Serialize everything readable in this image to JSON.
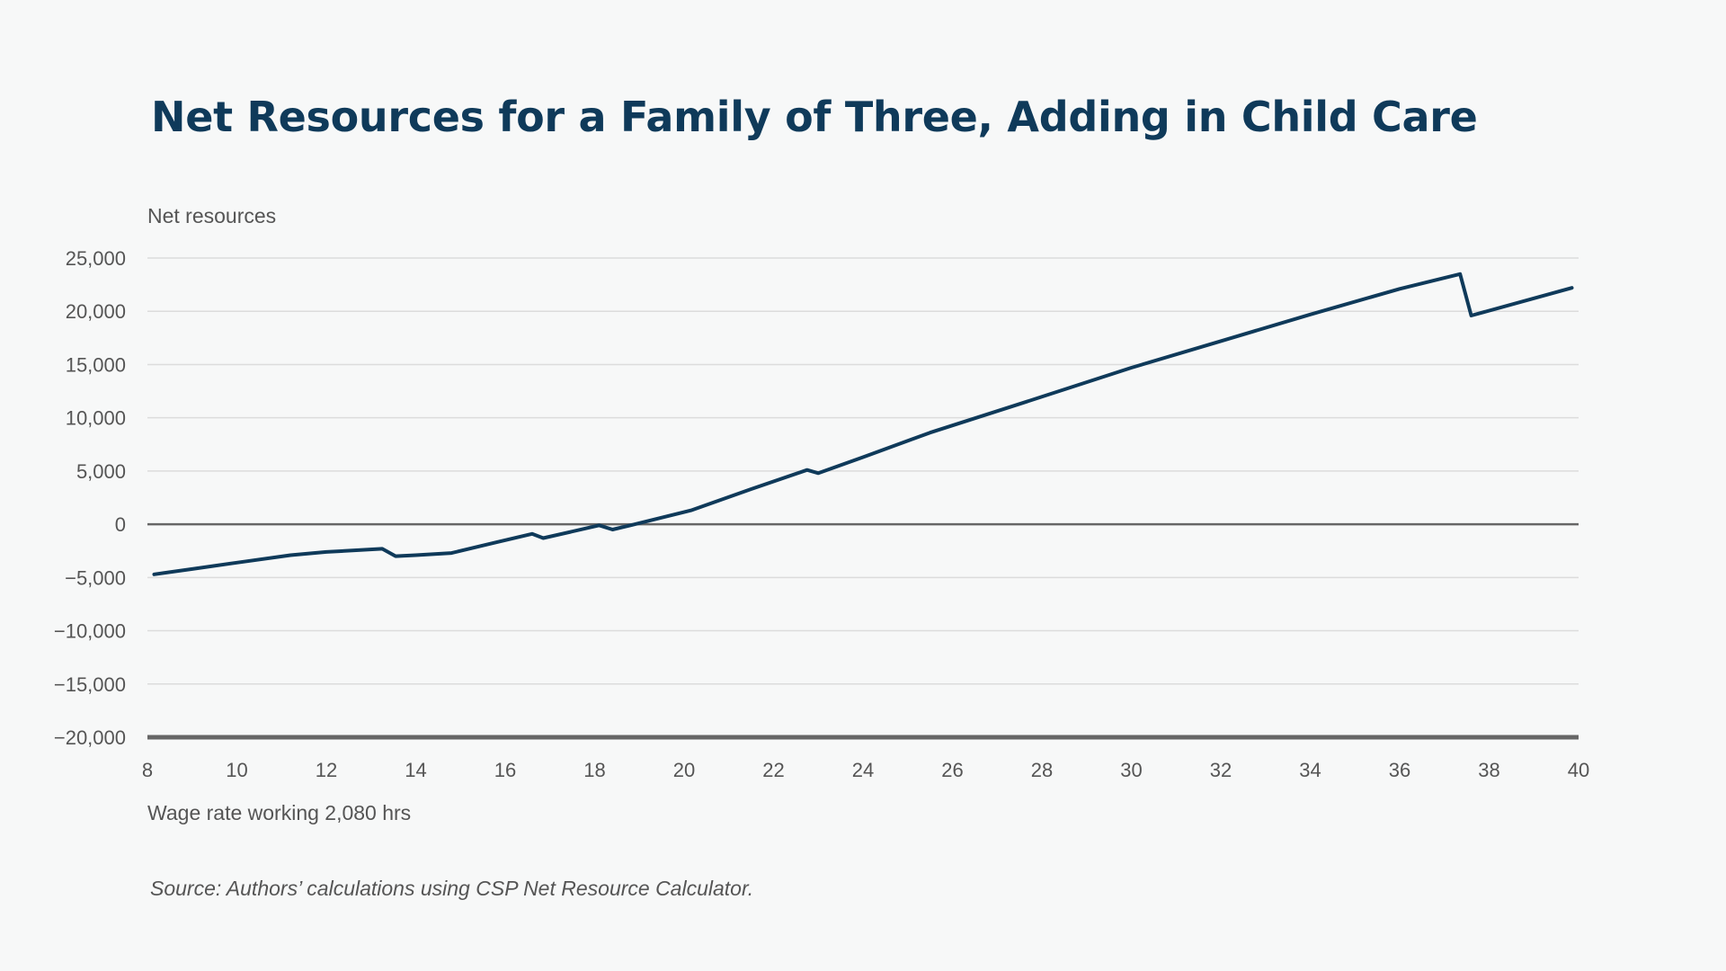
{
  "colors": {
    "background": "#f7f8f8",
    "title": "#0f3a5a",
    "line": "#0f3a5a",
    "grid": "#dcdcdc",
    "zero_line": "#666666",
    "baseline": "#666666",
    "text": "#555555"
  },
  "chart_data": {
    "type": "line",
    "title": "Net Resources for a Family of Three, Adding in Child Care",
    "ylabel": "Net resources",
    "xlabel": "Wage rate working 2,080 hrs",
    "source": "Source: Authors’ calculations using CSP Net Resource Calculator.",
    "xlim": [
      8,
      40
    ],
    "ylim": [
      -20000,
      25000
    ],
    "xticks": [
      8,
      10,
      12,
      14,
      16,
      18,
      20,
      22,
      24,
      26,
      28,
      30,
      32,
      34,
      36,
      38,
      40
    ],
    "yticks": [
      25000,
      20000,
      15000,
      10000,
      5000,
      0,
      -5000,
      -10000,
      -15000,
      -20000
    ],
    "ytick_labels": [
      "25,000",
      "20,000",
      "15,000",
      "10,000",
      "5,000",
      "0",
      "−5,000",
      "−10,000",
      "−15,000",
      "−20,000"
    ],
    "grid": true,
    "legend": "none",
    "series": [
      {
        "x": [
          8.15,
          9,
          10,
          11.2,
          12,
          13.25,
          13.55,
          14,
          14.8,
          15.8,
          16.6,
          16.85,
          18.1,
          18.4,
          18.8,
          20.15,
          21.5,
          22.75,
          23,
          24,
          25.5,
          27.5,
          30,
          32,
          34,
          36,
          37.35,
          37.6,
          39.85
        ],
        "y": [
          -4700,
          -4200,
          -3600,
          -2900,
          -2600,
          -2300,
          -3000,
          -2900,
          -2700,
          -1700,
          -900,
          -1300,
          -100,
          -500,
          -100,
          1300,
          3300,
          5100,
          4800,
          6300,
          8600,
          11300,
          14700,
          17200,
          19700,
          22100,
          23500,
          19600,
          22200
        ]
      }
    ]
  }
}
